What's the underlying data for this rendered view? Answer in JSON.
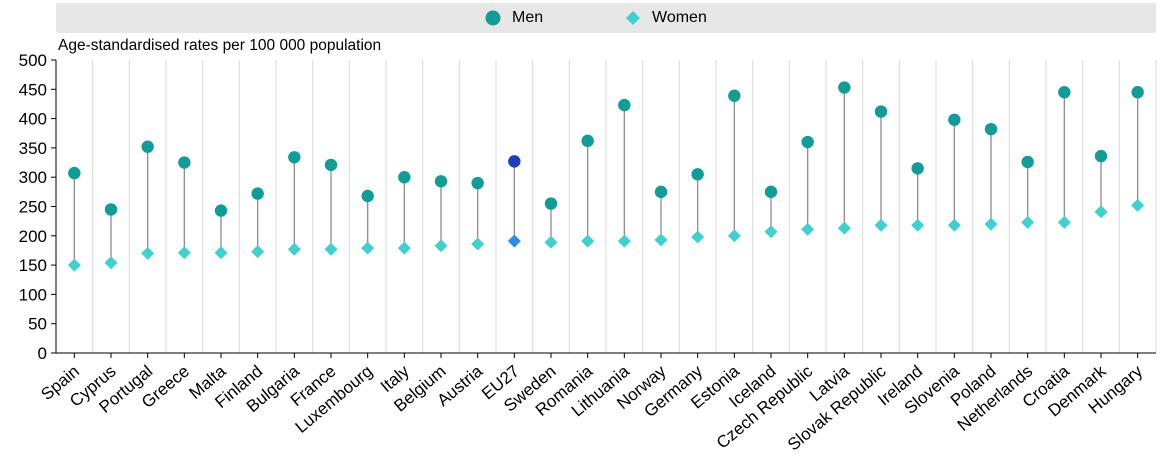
{
  "legend": {
    "men_label": "Men",
    "women_label": "Women"
  },
  "colors": {
    "men": "#0f9d96",
    "women": "#3fd1cf",
    "eu_men": "#1e3fc0",
    "eu_women": "#2a8ef0",
    "stem": "#8c8c8c",
    "grid": "#d9d9d9",
    "legend_bg": "#e7e7e7"
  },
  "chart_data": {
    "type": "scatter",
    "ylabel": "Age-standardised rates per 100 000 population",
    "ylim": [
      0,
      500
    ],
    "yticks": [
      0,
      50,
      100,
      150,
      200,
      250,
      300,
      350,
      400,
      450,
      500
    ],
    "grid": "vertical",
    "legend_position": "top",
    "categories": [
      "Spain",
      "Cyprus",
      "Portugal",
      "Greece",
      "Malta",
      "Finland",
      "Bulgaria",
      "France",
      "Luxembourg",
      "Italy",
      "Belgium",
      "Austria",
      "EU27",
      "Sweden",
      "Romania",
      "Lithuania",
      "Norway",
      "Germany",
      "Estonia",
      "Iceland",
      "Czech Republic",
      "Latvia",
      "Slovak Republic",
      "Ireland",
      "Slovenia",
      "Poland",
      "Netherlands",
      "Croatia",
      "Denmark",
      "Hungary"
    ],
    "highlight": "EU27",
    "series": [
      {
        "name": "Men",
        "marker": "circle",
        "values": [
          307,
          245,
          352,
          325,
          243,
          272,
          334,
          321,
          268,
          300,
          293,
          290,
          327,
          255,
          362,
          423,
          275,
          305,
          439,
          275,
          360,
          453,
          412,
          315,
          398,
          382,
          326,
          445,
          336,
          445
        ]
      },
      {
        "name": "Women",
        "marker": "diamond",
        "values": [
          150,
          154,
          170,
          171,
          171,
          173,
          177,
          177,
          179,
          179,
          183,
          186,
          191,
          189,
          191,
          191,
          193,
          198,
          200,
          207,
          211,
          213,
          218,
          218,
          218,
          220,
          223,
          223,
          241,
          252
        ]
      }
    ]
  }
}
